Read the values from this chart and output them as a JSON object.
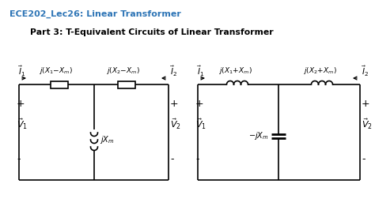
{
  "title1": "ECE202_Lec26: Linear Transformer",
  "title1_color": "#2E75B6",
  "title2": "Part 3: T-Equivalent Circuits of Linear Transformer",
  "bg_color": "#FFFFFF",
  "fig_w": 4.74,
  "fig_h": 2.66,
  "dpi": 100,
  "lw": 1.2
}
